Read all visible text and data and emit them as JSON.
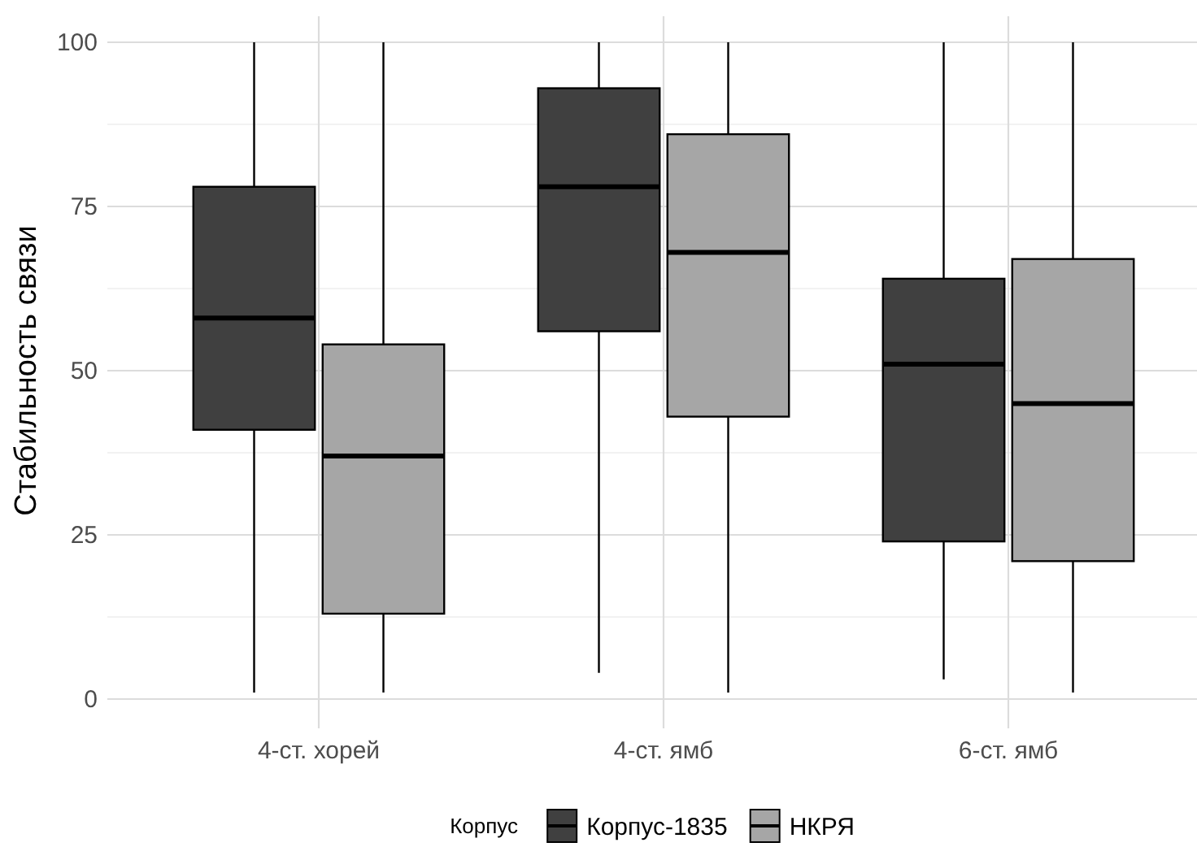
{
  "chart_data": {
    "type": "box",
    "ylabel": "Стабильность связи",
    "legend_title": "Корпус",
    "legend": "bottom",
    "grid": true,
    "categories": [
      "4-ст. хорей",
      "4-ст. ямб",
      "6-ст. ямб"
    ],
    "ylim": [
      0,
      100
    ],
    "yticks": [
      0,
      {
        "value": 12.5,
        "label": null
      },
      25,
      {
        "value": 37.5,
        "label": null
      },
      50,
      {
        "value": 62.5,
        "label": null
      },
      75,
      {
        "value": 87.5,
        "label": null
      },
      100
    ],
    "series": [
      {
        "name": "Корпус-1835",
        "color": "#404040",
        "boxes": [
          {
            "low": 1,
            "q1": 41,
            "median": 58,
            "q3": 78,
            "high": 100
          },
          {
            "low": 4,
            "q1": 56,
            "median": 78,
            "q3": 93,
            "high": 100
          },
          {
            "low": 3,
            "q1": 24,
            "median": 51,
            "q3": 64,
            "high": 100
          }
        ]
      },
      {
        "name": "НКРЯ",
        "color": "#a6a6a6",
        "boxes": [
          {
            "low": 1,
            "q1": 13,
            "median": 37,
            "q3": 54,
            "high": 100
          },
          {
            "low": 1,
            "q1": 43,
            "median": 68,
            "q3": 86,
            "high": 100
          },
          {
            "low": 1,
            "q1": 21,
            "median": 45,
            "q3": 67,
            "high": 100
          }
        ]
      }
    ]
  }
}
